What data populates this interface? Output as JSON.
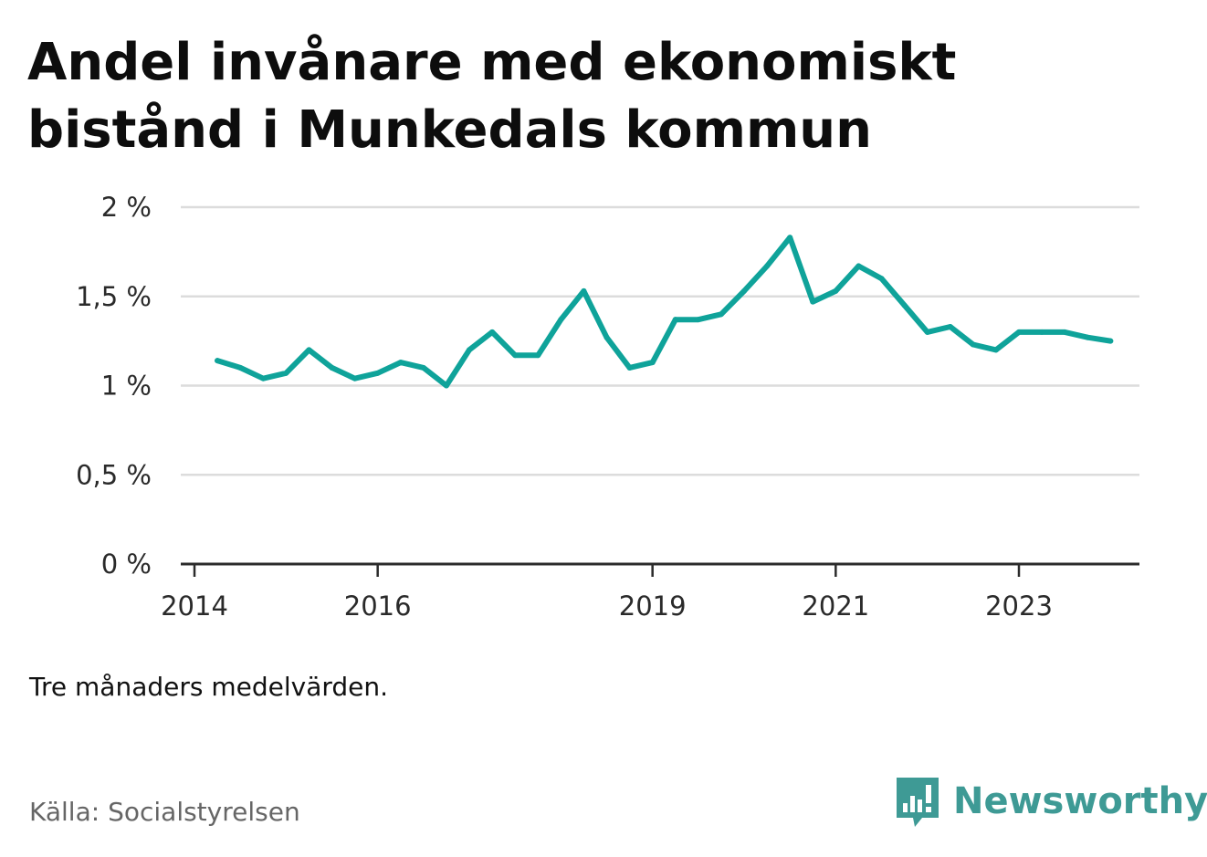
{
  "header": {
    "title": "Andel invånare med ekonomiskt bistånd i Munkedals kommun"
  },
  "footer": {
    "note": "Tre månaders medelvärden.",
    "source": "Källa: Socialstyrelsen",
    "brand": "Newsworthy",
    "brand_color": "#3e9a95"
  },
  "chart_data": {
    "type": "line",
    "title": "Andel invånare med ekonomiskt bistånd i Munkedals kommun",
    "xlabel": "",
    "ylabel": "",
    "ylim": [
      0,
      2
    ],
    "xlim": [
      "2014-01",
      "2024-05"
    ],
    "yticks": [
      0,
      0.5,
      1,
      1.5,
      2
    ],
    "ytick_labels": [
      "0 %",
      "0,5 %",
      "1 %",
      "1,5 %",
      "2 %"
    ],
    "xticks": [
      "2014-01",
      "2016-01",
      "2019-01",
      "2021-01",
      "2023-01"
    ],
    "xtick_labels": [
      "2014",
      "2016",
      "2019",
      "2021",
      "2023"
    ],
    "grid": true,
    "line_color": "#0fa39a",
    "series": [
      {
        "x": [
          "2014-04",
          "2014-07",
          "2014-10",
          "2015-01",
          "2015-04",
          "2015-07",
          "2015-10",
          "2016-01",
          "2016-04",
          "2016-07",
          "2016-10",
          "2017-01",
          "2017-04",
          "2017-07",
          "2017-10",
          "2018-01",
          "2018-04",
          "2018-07",
          "2018-10",
          "2019-01",
          "2019-04",
          "2019-07",
          "2019-10",
          "2020-01",
          "2020-04",
          "2020-07",
          "2020-10",
          "2021-01",
          "2021-04",
          "2021-07",
          "2021-10",
          "2022-01",
          "2022-04",
          "2022-07",
          "2022-10",
          "2023-01",
          "2023-04",
          "2023-07",
          "2023-10",
          "2024-01"
        ],
        "values": [
          1.14,
          1.1,
          1.04,
          1.07,
          1.2,
          1.1,
          1.04,
          1.07,
          1.13,
          1.1,
          1.0,
          1.2,
          1.3,
          1.17,
          1.17,
          1.37,
          1.53,
          1.27,
          1.1,
          1.13,
          1.37,
          1.37,
          1.4,
          1.53,
          1.67,
          1.83,
          1.47,
          1.53,
          1.67,
          1.6,
          1.45,
          1.3,
          1.33,
          1.23,
          1.2,
          1.3,
          1.3,
          1.3,
          1.27,
          1.25
        ]
      }
    ]
  }
}
